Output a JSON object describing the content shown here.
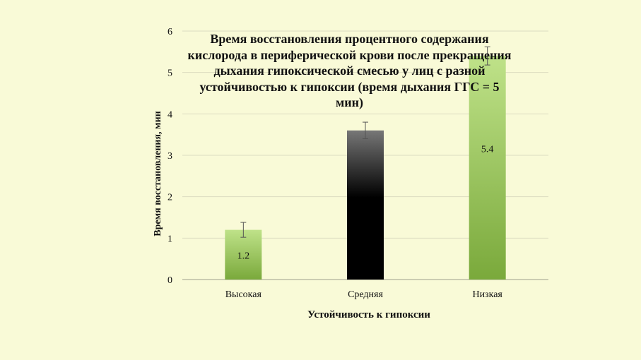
{
  "chart_data": {
    "type": "bar",
    "title": "Время восстановления процентного содержания кислорода в периферической крови после прекращения дыхания гипоксической смесью у лиц с разной устойчивостью к гипоксии (время дыхания ГГС = 5 мин)",
    "xlabel": "Устойчивость к гипоксии",
    "ylabel": "Время восстановления, мин",
    "categories": [
      "Высокая",
      "Средняя",
      "Низкая"
    ],
    "values": [
      1.2,
      3.6,
      5.4
    ],
    "error": [
      0.18,
      0.2,
      0.22
    ],
    "data_labels": [
      "1.2",
      "",
      "5.4"
    ],
    "ylim": [
      0,
      6
    ],
    "yticks": [
      0,
      1,
      2,
      3,
      4,
      5,
      6
    ],
    "grid": true,
    "legend": "none",
    "colors": {
      "green_light": "#bfe289",
      "green_dark": "#7aa93b",
      "black_top": "#777777",
      "black_bottom": "#000000",
      "grid": "#dcdcc0",
      "axis": "#a0a08c"
    }
  }
}
